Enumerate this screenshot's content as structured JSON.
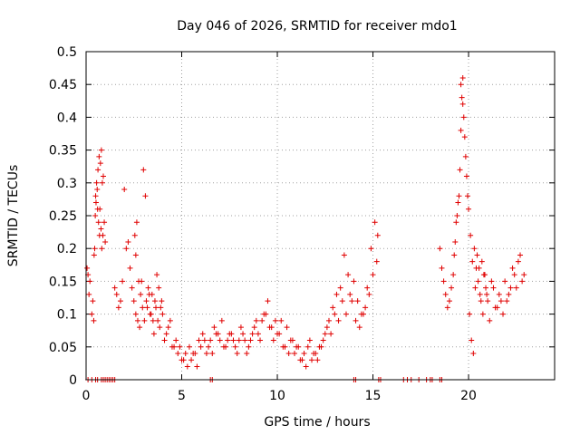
{
  "chart_data": {
    "type": "scatter",
    "title": "Day 046 of 2026, SRMTID for receiver mdo1",
    "xlabel": "GPS time / hours",
    "ylabel": "SRMTID / TECUs",
    "xlim": [
      0,
      24.5
    ],
    "ylim": [
      0,
      0.5
    ],
    "xticks": [
      0,
      5,
      10,
      15,
      20
    ],
    "xtick_labels": [
      "0",
      "5",
      "10",
      "15",
      "20"
    ],
    "yticks": [
      0,
      0.05,
      0.1,
      0.15,
      0.2,
      0.25,
      0.3,
      0.35,
      0.4,
      0.45,
      0.5
    ],
    "ytick_labels": [
      "0",
      "0.05",
      "0.1",
      "0.15",
      "0.2",
      "0.25",
      "0.3",
      "0.35",
      "0.4",
      "0.45",
      "0.5"
    ],
    "grid": true,
    "marker": "+",
    "color": "#e00000",
    "series": [
      {
        "name": "SRMTID",
        "x": [
          0.05,
          0.1,
          0.15,
          0.2,
          0.3,
          0.35,
          0.4,
          0.45,
          0.5,
          0.55,
          0.6,
          0.65,
          0.7,
          0.75,
          0.8,
          0.85,
          0.9,
          0.95,
          1.0,
          1.5,
          1.6,
          1.7,
          1.8,
          1.9,
          2.0,
          2.1,
          2.2,
          2.3,
          2.4,
          2.5,
          2.6,
          2.7,
          2.8,
          2.9,
          3.0,
          3.1,
          3.2,
          3.3,
          3.4,
          3.5,
          3.6,
          3.7,
          3.8,
          3.9,
          4.0,
          4.2,
          4.4,
          4.6,
          4.8,
          5.0,
          5.2,
          5.4,
          5.6,
          5.8,
          6.0,
          6.2,
          6.4,
          6.6,
          6.8,
          7.0,
          7.2,
          7.4,
          7.6,
          7.8,
          8.0,
          8.2,
          8.4,
          8.6,
          8.8,
          9.0,
          9.2,
          9.4,
          9.6,
          9.8,
          10.0,
          10.2,
          10.4,
          10.6,
          10.8,
          11.0,
          11.2,
          11.4,
          11.6,
          11.8,
          12.0,
          12.2,
          12.4,
          12.6,
          12.8,
          13.0,
          13.2,
          13.4,
          13.6,
          13.8,
          14.0,
          14.2,
          14.4,
          14.6,
          14.8,
          15.0,
          15.2,
          18.5,
          18.6,
          18.7,
          18.8,
          18.9,
          19.0,
          19.1,
          19.2,
          19.3,
          19.4,
          19.5,
          19.6,
          19.7,
          19.8,
          19.9,
          20.0,
          20.1,
          20.2,
          20.3,
          20.4,
          20.5,
          20.6,
          20.7,
          20.8,
          20.9,
          21.0,
          21.2,
          21.4,
          21.6,
          21.8,
          22.0,
          22.2,
          22.4,
          22.6,
          22.8,
          0.42,
          0.48,
          0.52,
          0.58,
          0.62,
          0.68,
          0.72,
          0.78,
          0.82,
          0.88,
          2.55,
          2.6,
          2.65,
          2.75,
          2.85,
          2.95,
          3.05,
          3.15,
          3.25,
          3.35,
          3.45,
          3.55,
          3.65,
          3.75,
          3.85,
          3.95,
          4.1,
          4.3,
          4.5,
          4.7,
          4.9,
          5.1,
          5.3,
          5.5,
          5.7,
          5.9,
          6.1,
          6.3,
          6.5,
          6.7,
          6.9,
          7.1,
          7.3,
          7.5,
          7.7,
          7.9,
          8.1,
          8.3,
          8.5,
          8.7,
          8.9,
          9.1,
          9.3,
          9.5,
          9.7,
          9.9,
          10.1,
          10.3,
          10.5,
          10.7,
          10.9,
          11.1,
          11.3,
          11.5,
          11.7,
          11.9,
          12.1,
          12.3,
          12.5,
          12.7,
          12.9,
          13.1,
          13.3,
          13.5,
          13.7,
          13.9,
          14.1,
          14.3,
          14.5,
          14.7,
          14.9,
          15.1,
          15.25,
          19.25,
          19.35,
          19.45,
          19.55,
          19.6,
          19.65,
          19.7,
          19.75,
          19.85,
          19.95,
          20.05,
          20.15,
          20.25,
          20.35,
          20.45,
          20.55,
          20.65,
          20.75,
          20.85,
          20.95,
          21.1,
          21.3,
          21.5,
          21.7,
          21.9,
          22.1,
          22.3,
          22.5,
          22.7,
          22.9,
          0.1,
          0.3,
          0.5,
          0.6,
          0.8,
          0.9,
          1.0,
          1.1,
          1.2,
          1.3,
          1.4,
          1.5,
          6.5,
          6.6,
          14.0,
          14.1,
          15.3,
          15.4,
          16.6,
          16.8,
          17.0,
          17.4,
          17.8,
          18.0,
          18.1,
          18.5,
          18.6
        ],
        "y": [
          0.17,
          0.16,
          0.13,
          0.15,
          0.1,
          0.12,
          0.09,
          0.2,
          0.28,
          0.3,
          0.26,
          0.24,
          0.22,
          0.33,
          0.35,
          0.3,
          0.31,
          0.24,
          0.21,
          0.14,
          0.13,
          0.11,
          0.12,
          0.15,
          0.29,
          0.2,
          0.21,
          0.17,
          0.14,
          0.12,
          0.1,
          0.09,
          0.08,
          0.15,
          0.32,
          0.28,
          0.11,
          0.13,
          0.1,
          0.09,
          0.12,
          0.16,
          0.14,
          0.11,
          0.1,
          0.07,
          0.09,
          0.05,
          0.04,
          0.03,
          0.04,
          0.05,
          0.04,
          0.02,
          0.05,
          0.06,
          0.05,
          0.04,
          0.07,
          0.06,
          0.05,
          0.06,
          0.07,
          0.05,
          0.06,
          0.07,
          0.04,
          0.06,
          0.08,
          0.07,
          0.09,
          0.1,
          0.08,
          0.06,
          0.07,
          0.09,
          0.05,
          0.04,
          0.06,
          0.05,
          0.03,
          0.04,
          0.05,
          0.03,
          0.04,
          0.05,
          0.06,
          0.08,
          0.07,
          0.1,
          0.09,
          0.12,
          0.1,
          0.13,
          0.15,
          0.12,
          0.1,
          0.11,
          0.13,
          0.16,
          0.18,
          0.2,
          0.17,
          0.15,
          0.13,
          0.11,
          0.12,
          0.14,
          0.16,
          0.21,
          0.25,
          0.28,
          0.45,
          0.42,
          0.37,
          0.31,
          0.26,
          0.22,
          0.18,
          0.2,
          0.17,
          0.15,
          0.13,
          0.18,
          0.16,
          0.14,
          0.12,
          0.15,
          0.11,
          0.13,
          0.1,
          0.12,
          0.14,
          0.16,
          0.18,
          0.15,
          0.19,
          0.25,
          0.27,
          0.29,
          0.32,
          0.34,
          0.26,
          0.23,
          0.2,
          0.22,
          0.22,
          0.19,
          0.24,
          0.15,
          0.13,
          0.11,
          0.09,
          0.12,
          0.14,
          0.1,
          0.13,
          0.07,
          0.11,
          0.09,
          0.08,
          0.12,
          0.06,
          0.08,
          0.05,
          0.06,
          0.05,
          0.03,
          0.02,
          0.03,
          0.04,
          0.06,
          0.07,
          0.04,
          0.06,
          0.08,
          0.07,
          0.09,
          0.05,
          0.07,
          0.06,
          0.04,
          0.08,
          0.06,
          0.05,
          0.07,
          0.09,
          0.06,
          0.1,
          0.12,
          0.08,
          0.09,
          0.07,
          0.05,
          0.08,
          0.06,
          0.04,
          0.05,
          0.03,
          0.02,
          0.06,
          0.04,
          0.03,
          0.05,
          0.07,
          0.09,
          0.11,
          0.13,
          0.14,
          0.19,
          0.16,
          0.12,
          0.09,
          0.08,
          0.1,
          0.14,
          0.2,
          0.24,
          0.22,
          0.19,
          0.24,
          0.27,
          0.32,
          0.38,
          0.43,
          0.46,
          0.4,
          0.34,
          0.28,
          0.1,
          0.06,
          0.04,
          0.14,
          0.19,
          0.17,
          0.12,
          0.1,
          0.16,
          0.13,
          0.09,
          0.14,
          0.11,
          0.12,
          0.15,
          0.13,
          0.17,
          0.14,
          0.19,
          0.16,
          0.0,
          0.0,
          0.0,
          0.0,
          0.0,
          0.0,
          0.0,
          0.0,
          0.0,
          0.0,
          0.0,
          0.0,
          0.0,
          0.0,
          0.0,
          0.0,
          0.0,
          0.0,
          0.0,
          0.0,
          0.0,
          0.0,
          0.0,
          0.0,
          0.0,
          0.0,
          0.0
        ]
      }
    ]
  }
}
